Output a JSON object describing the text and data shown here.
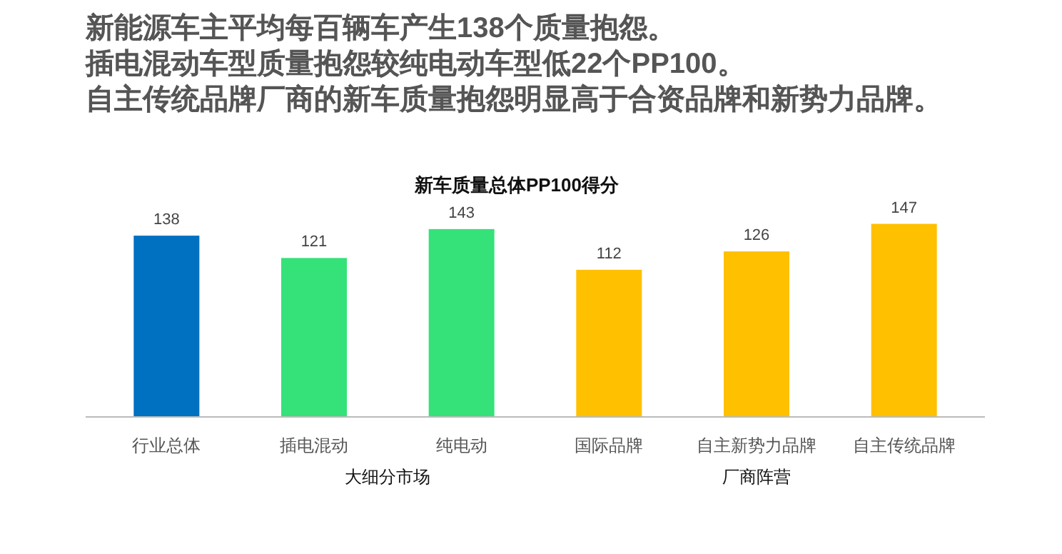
{
  "chart_data": {
    "type": "bar",
    "title": "新能源车主平均每百辆车产生138个质量抱怨。",
    "subtitle": "新车质量总体PP100得分",
    "categories": [
      "行业总体",
      "插电混动",
      "纯电动",
      "国际品牌",
      "自主新势力品牌",
      "自主传统品牌"
    ],
    "values": [
      138,
      121,
      143,
      112,
      126,
      147
    ],
    "colors": [
      "#0070c0",
      "#35e27a",
      "#35e27a",
      "#ffc000",
      "#ffc000",
      "#ffc000"
    ],
    "data_labels": true,
    "tick_labels": "x",
    "annotations": [
      "插电混动车型质量抱怨较纯电动车型低22个PP100。",
      "自主传统品牌厂商的新车质量抱怨明显高于合资品牌和新势力品牌。",
      "大细分市场",
      "厂商阵营"
    ]
  }
}
